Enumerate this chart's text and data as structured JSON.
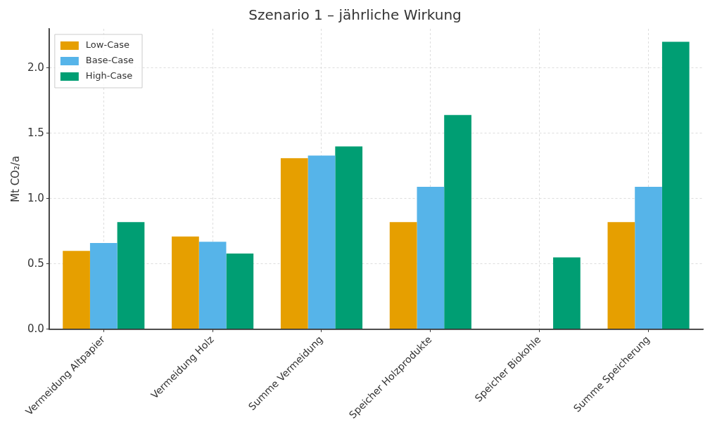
{
  "chart_data": {
    "type": "bar",
    "title": "Szenario 1 – jährliche Wirkung",
    "ylabel": "Mt CO₂/a",
    "categories": [
      "Vermeidung Altpapier",
      "Vermeidung Holz",
      "Summe Vermeidung",
      "Speicher Holzprodukte",
      "Speicher Biokohle",
      "Summe Speicherung"
    ],
    "series": [
      {
        "name": "Low-Case",
        "color": "#e69f00",
        "values": [
          0.6,
          0.71,
          1.31,
          0.82,
          0,
          0.82
        ]
      },
      {
        "name": "Base-Case",
        "color": "#56b4e9",
        "values": [
          0.66,
          0.67,
          1.33,
          1.09,
          0,
          1.09
        ]
      },
      {
        "name": "High-Case",
        "color": "#009e73",
        "values": [
          0.82,
          0.58,
          1.4,
          1.64,
          0.55,
          2.2
        ]
      }
    ],
    "ylim": [
      0,
      2.3
    ],
    "yticks": [
      {
        "value": 0,
        "label": "0.0"
      },
      0.5,
      {
        "value": 1,
        "label": "1.0"
      },
      1.5,
      {
        "value": 2,
        "label": "2.0"
      }
    ],
    "grid": true,
    "legend": "top left"
  }
}
